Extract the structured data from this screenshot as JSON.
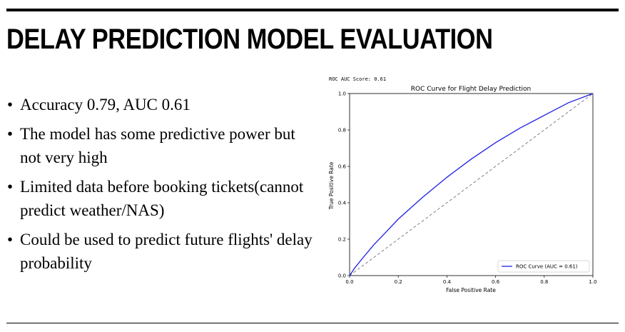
{
  "slide": {
    "title": "DELAY PREDICTION MODEL EVALUATION",
    "bullets": [
      "Accuracy 0.79, AUC 0.61",
      "The model has some predictive power but not very high",
      "Limited data before booking tickets(cannot predict weather/NAS)",
      "Could be used to predict future flights' delay probability"
    ]
  },
  "figure": {
    "score_text": "ROC AUC Score: 0.61"
  },
  "chart_data": {
    "type": "line",
    "title": "ROC Curve for Flight Delay Prediction",
    "xlabel": "False Positive Rate",
    "ylabel": "True Positive Rate",
    "xlim": [
      0.0,
      1.0
    ],
    "ylim": [
      0.0,
      1.0
    ],
    "xticks": [
      "0.0",
      "0.2",
      "0.4",
      "0.6",
      "0.8",
      "1.0"
    ],
    "yticks": [
      "0.0",
      "0.2",
      "0.4",
      "0.6",
      "0.8",
      "1.0"
    ],
    "grid": false,
    "legend_position": "lower right",
    "series": [
      {
        "name": "ROC Curve (AUC = 0.61)",
        "color": "#1f1fe6",
        "style": "solid",
        "x": [
          0.0,
          0.02,
          0.05,
          0.1,
          0.15,
          0.2,
          0.3,
          0.4,
          0.5,
          0.6,
          0.7,
          0.8,
          0.9,
          1.0
        ],
        "y": [
          0.0,
          0.04,
          0.09,
          0.17,
          0.24,
          0.31,
          0.43,
          0.54,
          0.64,
          0.73,
          0.81,
          0.88,
          0.95,
          1.0
        ]
      }
    ],
    "reference_line": {
      "x": [
        0.0,
        1.0
      ],
      "y": [
        0.0,
        1.0
      ],
      "color": "#808080",
      "style": "dashed"
    }
  }
}
